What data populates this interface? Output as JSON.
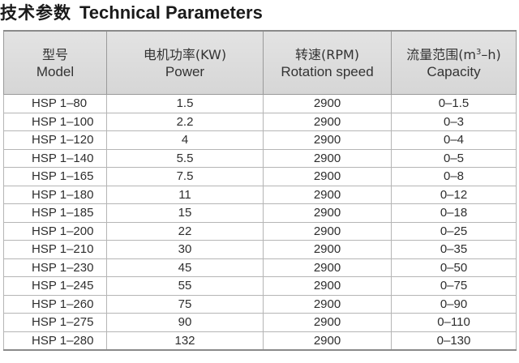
{
  "title": {
    "zh": "技术参数",
    "en": "Technical Parameters"
  },
  "table": {
    "headers": [
      {
        "zh": "型号",
        "en": "Model"
      },
      {
        "zh": "电机功率(KW)",
        "en": "Power"
      },
      {
        "zh": "转速(RPM)",
        "en": "Rotation speed"
      },
      {
        "zh_pre": "流量范围(m",
        "zh_sup": "3",
        "zh_post": "–h)",
        "en": "Capacity"
      }
    ],
    "rows": [
      {
        "model": "HSP 1–80",
        "power": "1.5",
        "speed": "2900",
        "capacity": "0–1.5"
      },
      {
        "model": "HSP 1–100",
        "power": "2.2",
        "speed": "2900",
        "capacity": "0–3"
      },
      {
        "model": "HSP 1–120",
        "power": "4",
        "speed": "2900",
        "capacity": "0–4"
      },
      {
        "model": "HSP 1–140",
        "power": "5.5",
        "speed": "2900",
        "capacity": "0–5"
      },
      {
        "model": "HSP 1–165",
        "power": "7.5",
        "speed": "2900",
        "capacity": "0–8"
      },
      {
        "model": "HSP 1–180",
        "power": "11",
        "speed": "2900",
        "capacity": "0–12"
      },
      {
        "model": "HSP 1–185",
        "power": "15",
        "speed": "2900",
        "capacity": "0–18"
      },
      {
        "model": "HSP 1–200",
        "power": "22",
        "speed": "2900",
        "capacity": "0–25"
      },
      {
        "model": "HSP 1–210",
        "power": "30",
        "speed": "2900",
        "capacity": "0–35"
      },
      {
        "model": "HSP 1–230",
        "power": "45",
        "speed": "2900",
        "capacity": "0–50"
      },
      {
        "model": "HSP 1–245",
        "power": "55",
        "speed": "2900",
        "capacity": "0–75"
      },
      {
        "model": "HSP 1–260",
        "power": "75",
        "speed": "2900",
        "capacity": "0–90"
      },
      {
        "model": "HSP 1–275",
        "power": "90",
        "speed": "2900",
        "capacity": "0–110"
      },
      {
        "model": "HSP 1–280",
        "power": "132",
        "speed": "2900",
        "capacity": "0–130"
      }
    ]
  }
}
